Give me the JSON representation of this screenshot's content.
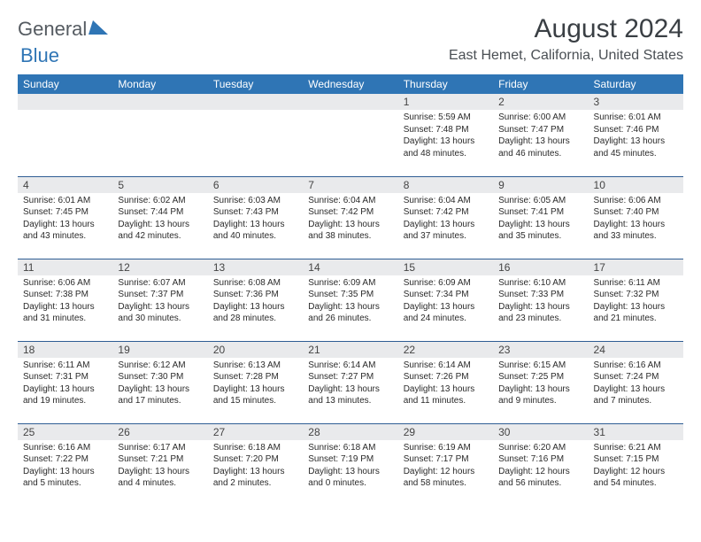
{
  "brand": {
    "part1": "General",
    "part2": "Blue"
  },
  "header": {
    "title": "August 2024",
    "location": "East Hemet, California, United States"
  },
  "day_headers": [
    "Sunday",
    "Monday",
    "Tuesday",
    "Wednesday",
    "Thursday",
    "Friday",
    "Saturday"
  ],
  "colors": {
    "header_bg": "#2f75b5",
    "header_text": "#ffffff",
    "row_border": "#2f5d94",
    "daynum_bg": "#e9eaec",
    "title_text": "#3a3f44",
    "logo_gray": "#555b61",
    "logo_blue": "#2f75b5"
  },
  "weeks": [
    [
      {
        "day": "",
        "sunrise": "",
        "sunset": "",
        "daylight": ""
      },
      {
        "day": "",
        "sunrise": "",
        "sunset": "",
        "daylight": ""
      },
      {
        "day": "",
        "sunrise": "",
        "sunset": "",
        "daylight": ""
      },
      {
        "day": "",
        "sunrise": "",
        "sunset": "",
        "daylight": ""
      },
      {
        "day": "1",
        "sunrise": "Sunrise: 5:59 AM",
        "sunset": "Sunset: 7:48 PM",
        "daylight": "Daylight: 13 hours and 48 minutes."
      },
      {
        "day": "2",
        "sunrise": "Sunrise: 6:00 AM",
        "sunset": "Sunset: 7:47 PM",
        "daylight": "Daylight: 13 hours and 46 minutes."
      },
      {
        "day": "3",
        "sunrise": "Sunrise: 6:01 AM",
        "sunset": "Sunset: 7:46 PM",
        "daylight": "Daylight: 13 hours and 45 minutes."
      }
    ],
    [
      {
        "day": "4",
        "sunrise": "Sunrise: 6:01 AM",
        "sunset": "Sunset: 7:45 PM",
        "daylight": "Daylight: 13 hours and 43 minutes."
      },
      {
        "day": "5",
        "sunrise": "Sunrise: 6:02 AM",
        "sunset": "Sunset: 7:44 PM",
        "daylight": "Daylight: 13 hours and 42 minutes."
      },
      {
        "day": "6",
        "sunrise": "Sunrise: 6:03 AM",
        "sunset": "Sunset: 7:43 PM",
        "daylight": "Daylight: 13 hours and 40 minutes."
      },
      {
        "day": "7",
        "sunrise": "Sunrise: 6:04 AM",
        "sunset": "Sunset: 7:42 PM",
        "daylight": "Daylight: 13 hours and 38 minutes."
      },
      {
        "day": "8",
        "sunrise": "Sunrise: 6:04 AM",
        "sunset": "Sunset: 7:42 PM",
        "daylight": "Daylight: 13 hours and 37 minutes."
      },
      {
        "day": "9",
        "sunrise": "Sunrise: 6:05 AM",
        "sunset": "Sunset: 7:41 PM",
        "daylight": "Daylight: 13 hours and 35 minutes."
      },
      {
        "day": "10",
        "sunrise": "Sunrise: 6:06 AM",
        "sunset": "Sunset: 7:40 PM",
        "daylight": "Daylight: 13 hours and 33 minutes."
      }
    ],
    [
      {
        "day": "11",
        "sunrise": "Sunrise: 6:06 AM",
        "sunset": "Sunset: 7:38 PM",
        "daylight": "Daylight: 13 hours and 31 minutes."
      },
      {
        "day": "12",
        "sunrise": "Sunrise: 6:07 AM",
        "sunset": "Sunset: 7:37 PM",
        "daylight": "Daylight: 13 hours and 30 minutes."
      },
      {
        "day": "13",
        "sunrise": "Sunrise: 6:08 AM",
        "sunset": "Sunset: 7:36 PM",
        "daylight": "Daylight: 13 hours and 28 minutes."
      },
      {
        "day": "14",
        "sunrise": "Sunrise: 6:09 AM",
        "sunset": "Sunset: 7:35 PM",
        "daylight": "Daylight: 13 hours and 26 minutes."
      },
      {
        "day": "15",
        "sunrise": "Sunrise: 6:09 AM",
        "sunset": "Sunset: 7:34 PM",
        "daylight": "Daylight: 13 hours and 24 minutes."
      },
      {
        "day": "16",
        "sunrise": "Sunrise: 6:10 AM",
        "sunset": "Sunset: 7:33 PM",
        "daylight": "Daylight: 13 hours and 23 minutes."
      },
      {
        "day": "17",
        "sunrise": "Sunrise: 6:11 AM",
        "sunset": "Sunset: 7:32 PM",
        "daylight": "Daylight: 13 hours and 21 minutes."
      }
    ],
    [
      {
        "day": "18",
        "sunrise": "Sunrise: 6:11 AM",
        "sunset": "Sunset: 7:31 PM",
        "daylight": "Daylight: 13 hours and 19 minutes."
      },
      {
        "day": "19",
        "sunrise": "Sunrise: 6:12 AM",
        "sunset": "Sunset: 7:30 PM",
        "daylight": "Daylight: 13 hours and 17 minutes."
      },
      {
        "day": "20",
        "sunrise": "Sunrise: 6:13 AM",
        "sunset": "Sunset: 7:28 PM",
        "daylight": "Daylight: 13 hours and 15 minutes."
      },
      {
        "day": "21",
        "sunrise": "Sunrise: 6:14 AM",
        "sunset": "Sunset: 7:27 PM",
        "daylight": "Daylight: 13 hours and 13 minutes."
      },
      {
        "day": "22",
        "sunrise": "Sunrise: 6:14 AM",
        "sunset": "Sunset: 7:26 PM",
        "daylight": "Daylight: 13 hours and 11 minutes."
      },
      {
        "day": "23",
        "sunrise": "Sunrise: 6:15 AM",
        "sunset": "Sunset: 7:25 PM",
        "daylight": "Daylight: 13 hours and 9 minutes."
      },
      {
        "day": "24",
        "sunrise": "Sunrise: 6:16 AM",
        "sunset": "Sunset: 7:24 PM",
        "daylight": "Daylight: 13 hours and 7 minutes."
      }
    ],
    [
      {
        "day": "25",
        "sunrise": "Sunrise: 6:16 AM",
        "sunset": "Sunset: 7:22 PM",
        "daylight": "Daylight: 13 hours and 5 minutes."
      },
      {
        "day": "26",
        "sunrise": "Sunrise: 6:17 AM",
        "sunset": "Sunset: 7:21 PM",
        "daylight": "Daylight: 13 hours and 4 minutes."
      },
      {
        "day": "27",
        "sunrise": "Sunrise: 6:18 AM",
        "sunset": "Sunset: 7:20 PM",
        "daylight": "Daylight: 13 hours and 2 minutes."
      },
      {
        "day": "28",
        "sunrise": "Sunrise: 6:18 AM",
        "sunset": "Sunset: 7:19 PM",
        "daylight": "Daylight: 13 hours and 0 minutes."
      },
      {
        "day": "29",
        "sunrise": "Sunrise: 6:19 AM",
        "sunset": "Sunset: 7:17 PM",
        "daylight": "Daylight: 12 hours and 58 minutes."
      },
      {
        "day": "30",
        "sunrise": "Sunrise: 6:20 AM",
        "sunset": "Sunset: 7:16 PM",
        "daylight": "Daylight: 12 hours and 56 minutes."
      },
      {
        "day": "31",
        "sunrise": "Sunrise: 6:21 AM",
        "sunset": "Sunset: 7:15 PM",
        "daylight": "Daylight: 12 hours and 54 minutes."
      }
    ]
  ]
}
